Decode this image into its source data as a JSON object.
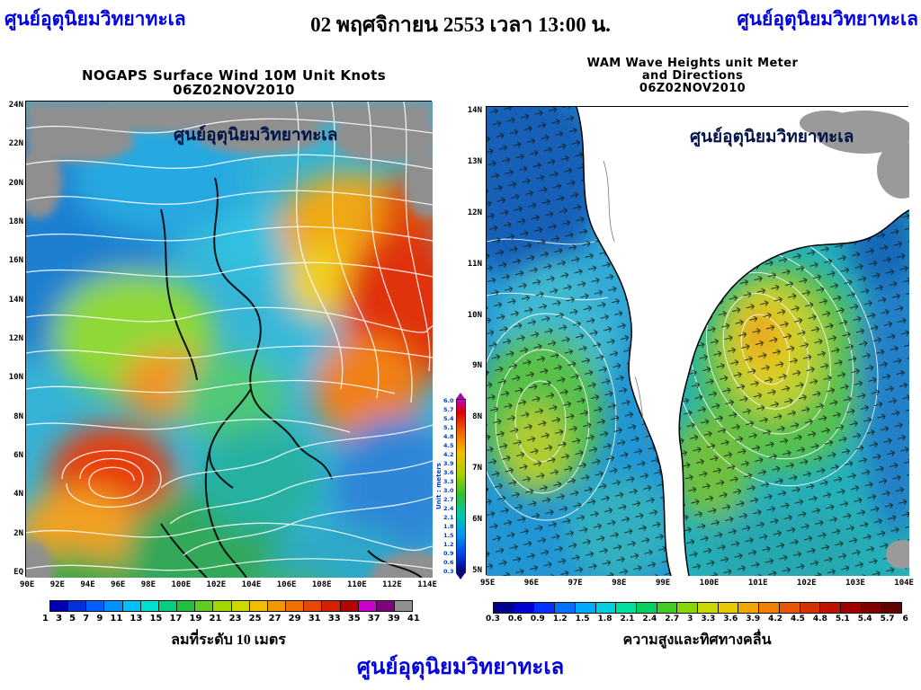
{
  "page": {
    "watermark_left": "ศูนย์อุตุนิยมวิทยาทะเล",
    "watermark_right": "ศูนย์อุตุนิยมวิทยาทะเล",
    "title_datetime": "02 พฤศจิกายน 2553 เวลา 13:00 น.",
    "footer": "ศูนย์อุตุนิยมวิทยาทะเล",
    "colors": {
      "watermark_blue": "#0000e0",
      "text_black": "#000000"
    }
  },
  "wind_map": {
    "title": "NOGAPS Surface Wind 10M Unit Knots",
    "subtitle": "06Z02NOV2010",
    "watermark": "ศูนย์อุตุนิยมวิทยาทะเล",
    "caption": "ลมที่ระดับ 10 เมตร",
    "y_ticks": [
      "24N",
      "22N",
      "20N",
      "18N",
      "16N",
      "14N",
      "12N",
      "10N",
      "8N",
      "6N",
      "4N",
      "2N",
      "EQ"
    ],
    "x_ticks": [
      "90E",
      "92E",
      "94E",
      "96E",
      "98E",
      "100E",
      "102E",
      "104E",
      "106E",
      "108E",
      "110E",
      "112E",
      "114E"
    ],
    "colorbar": {
      "values": [
        "1",
        "3",
        "5",
        "7",
        "9",
        "11",
        "13",
        "15",
        "17",
        "19",
        "21",
        "23",
        "25",
        "27",
        "29",
        "31",
        "33",
        "35",
        "37",
        "39",
        "41"
      ],
      "colors": [
        "#0000b0",
        "#0030e0",
        "#0060ff",
        "#0090ff",
        "#00c0ff",
        "#00e0d0",
        "#00d080",
        "#20c040",
        "#60cc20",
        "#a0d800",
        "#d0d800",
        "#f0c000",
        "#f09800",
        "#f07000",
        "#e84800",
        "#d82000",
        "#b80000",
        "#cc00cc",
        "#800080",
        "#909090"
      ]
    }
  },
  "wave_map": {
    "title": "WAM Wave Heights unit Meter",
    "title_line2": "and Directions",
    "subtitle": "06Z02NOV2010",
    "watermark": "ศูนย์อุตุนิยมวิทยาทะเล",
    "caption": "ความสูงและทิศทางคลื่น",
    "y_ticks": [
      "14N",
      "13N",
      "12N",
      "11N",
      "10N",
      "9N",
      "8N",
      "7N",
      "6N",
      "5N"
    ],
    "x_ticks": [
      "95E",
      "96E",
      "97E",
      "98E",
      "99E",
      "100E",
      "101E",
      "102E",
      "103E",
      "104E"
    ],
    "colorbar": {
      "values": [
        "0.3",
        "0.6",
        "0.9",
        "1.2",
        "1.5",
        "1.8",
        "2.1",
        "2.4",
        "2.7",
        "3",
        "3.3",
        "3.6",
        "3.9",
        "4.2",
        "4.5",
        "4.8",
        "5.1",
        "5.4",
        "5.7",
        "6"
      ],
      "colors": [
        "#000090",
        "#0000d0",
        "#0030ff",
        "#0070ff",
        "#00a8ff",
        "#00d0e0",
        "#00e0a0",
        "#00d060",
        "#40cc20",
        "#88d800",
        "#c8d800",
        "#e8c800",
        "#f0a800",
        "#f08000",
        "#e85800",
        "#d83000",
        "#c01000",
        "#a00000",
        "#800000",
        "#600000"
      ]
    },
    "vertical_colorbar": {
      "unit_label": "Unit : meters",
      "values": [
        "6.0",
        "5.7",
        "5.4",
        "5.1",
        "4.8",
        "4.5",
        "4.2",
        "3.9",
        "3.6",
        "3.3",
        "3.0",
        "2.7",
        "2.4",
        "2.1",
        "1.8",
        "1.5",
        "1.2",
        "0.9",
        "0.6",
        "0.3"
      ]
    }
  }
}
